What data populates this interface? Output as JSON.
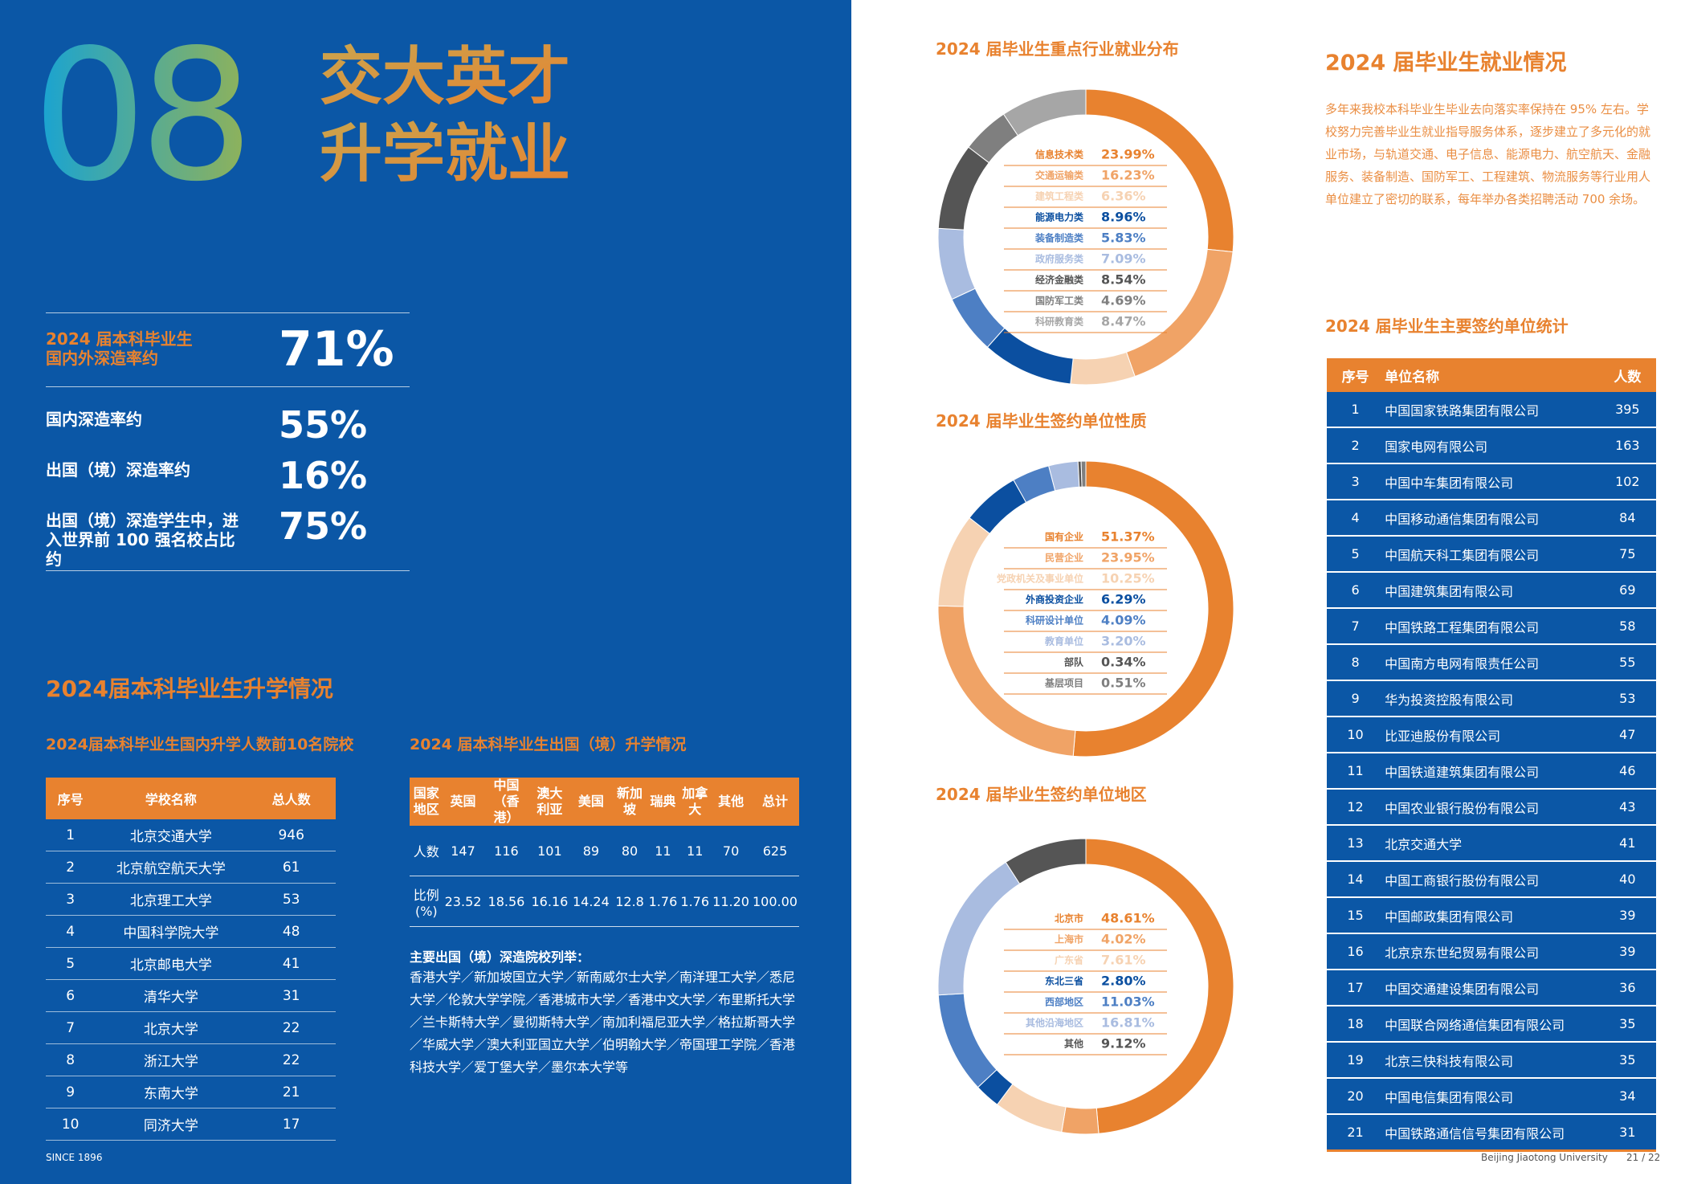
{
  "cover": {
    "number": "08",
    "title_lines": [
      "交大英才",
      "升学就业"
    ]
  },
  "stats": {
    "headline": {
      "label_lines": [
        "2024 届本科毕业生",
        "国内外深造率约"
      ],
      "value": "71%"
    },
    "rows": [
      {
        "label": "国内深造率约",
        "value": "55%"
      },
      {
        "label": "出国（境）深造率约",
        "value": "16%"
      },
      {
        "label": "出国（境）深造学生中，进入世界前 100 强名校占比约",
        "value": "75%"
      }
    ]
  },
  "further_study": {
    "title": "2024届本科毕业生升学情况",
    "domestic": {
      "title": "2024届本科毕业生国内升学人数前10名院校",
      "headers": [
        "序号",
        "学校名称",
        "总人数"
      ],
      "rows": [
        [
          1,
          "北京交通大学",
          946
        ],
        [
          2,
          "北京航空航天大学",
          61
        ],
        [
          3,
          "北京理工大学",
          53
        ],
        [
          4,
          "中国科学院大学",
          48
        ],
        [
          5,
          "北京邮电大学",
          41
        ],
        [
          6,
          "清华大学",
          31
        ],
        [
          7,
          "北京大学",
          22
        ],
        [
          8,
          "浙江大学",
          22
        ],
        [
          9,
          "东南大学",
          21
        ],
        [
          10,
          "同济大学",
          17
        ]
      ]
    },
    "abroad": {
      "title": "2024 届本科毕业生出国（境）升学情况",
      "headers": [
        "国家地区",
        "英国",
        "中国（香港）",
        "澳大利亚",
        "美国",
        "新加坡",
        "瑞典",
        "加拿大",
        "其他",
        "总计"
      ],
      "rows": [
        [
          "人数",
          "147",
          "116",
          "101",
          "89",
          "80",
          "11",
          "11",
          "70",
          "625"
        ],
        [
          "比例(%)",
          "23.52",
          "18.56",
          "16.16",
          "14.24",
          "12.8",
          "1.76",
          "1.76",
          "11.20",
          "100.00"
        ]
      ]
    },
    "schools_title": "主要出国（境）深造院校列举：",
    "schools": "香港大学／新加坡国立大学／新南威尔士大学／南洋理工大学／悉尼大学／伦敦大学学院／香港城市大学／香港中文大学／布里斯托大学／兰卡斯特大学／曼彻斯特大学／南加利福尼亚大学／格拉斯哥大学／华威大学／澳大利亚国立大学／伯明翰大学／帝国理工学院／香港科技大学／爱丁堡大学／墨尔本大学等"
  },
  "chart_data": [
    {
      "type": "donut",
      "title": "2024 届毕业生重点行业就业分布",
      "categories": [
        "信息技术类",
        "交通运输类",
        "建筑工程类",
        "能源电力类",
        "装备制造类",
        "政府服务类",
        "经济金融类",
        "国防军工类",
        "科研教育类"
      ],
      "values": [
        23.99,
        16.23,
        6.36,
        8.96,
        5.83,
        7.09,
        8.54,
        4.69,
        8.47
      ],
      "value_labels": [
        "23.99%",
        "16.23%",
        "6.36%",
        "8.96%",
        "5.83%",
        "7.09%",
        "8.54%",
        "4.69%",
        "8.47%"
      ],
      "colors": [
        "#e8822f",
        "#f0a366",
        "#f6d2b2",
        "#0b4fa0",
        "#4d7fc4",
        "#a9bce0",
        "#555555",
        "#7f7f7f",
        "#a6a6a6"
      ]
    },
    {
      "type": "donut",
      "title": "2024 届毕业生签约单位性质",
      "categories": [
        "国有企业",
        "民营企业",
        "党政机关及事业单位",
        "外商投资企业",
        "科研设计单位",
        "教育单位",
        "部队",
        "基层项目"
      ],
      "values": [
        51.37,
        23.95,
        10.25,
        6.29,
        4.09,
        3.2,
        0.34,
        0.51
      ],
      "value_labels": [
        "51.37%",
        "23.95%",
        "10.25%",
        "6.29%",
        "4.09%",
        "3.20%",
        "0.34%",
        "0.51%"
      ],
      "colors": [
        "#e8822f",
        "#f0a366",
        "#f6d2b2",
        "#0b4fa0",
        "#4d7fc4",
        "#a9bce0",
        "#555555",
        "#7f7f7f"
      ]
    },
    {
      "type": "donut",
      "title": "2024 届毕业生签约单位地区",
      "categories": [
        "北京市",
        "上海市",
        "广东省",
        "东北三省",
        "西部地区",
        "其他沿海地区",
        "其他"
      ],
      "values": [
        48.61,
        4.02,
        7.61,
        2.8,
        11.03,
        16.81,
        9.12
      ],
      "value_labels": [
        "48.61%",
        "4.02%",
        "7.61%",
        "2.80%",
        "11.03%",
        "16.81%",
        "9.12%"
      ],
      "colors": [
        "#e8822f",
        "#f0a366",
        "#f6d2b2",
        "#0b4fa0",
        "#4d7fc4",
        "#a9bce0",
        "#555555"
      ]
    }
  ],
  "employment": {
    "title": "2024 届毕业生就业情况",
    "paragraph": "多年来我校本科毕业生毕业去向落实率保持在 95% 左右。学校努力完善毕业生就业指导服务体系，逐步建立了多元化的就业市场，与轨道交通、电子信息、能源电力、航空航天、金融服务、装备制造、国防军工、工程建筑、物流服务等行业用人单位建立了密切的联系，每年举办各类招聘活动 700 余场。",
    "table": {
      "title": "2024 届毕业生主要签约单位统计",
      "headers": [
        "序号",
        "单位名称",
        "人数"
      ],
      "rows": [
        [
          1,
          "中国国家铁路集团有限公司",
          395
        ],
        [
          2,
          "国家电网有限公司",
          163
        ],
        [
          3,
          "中国中车集团有限公司",
          102
        ],
        [
          4,
          "中国移动通信集团有限公司",
          84
        ],
        [
          5,
          "中国航天科工集团有限公司",
          75
        ],
        [
          6,
          "中国建筑集团有限公司",
          69
        ],
        [
          7,
          "中国铁路工程集团有限公司",
          58
        ],
        [
          8,
          "中国南方电网有限责任公司",
          55
        ],
        [
          9,
          "华为投资控股有限公司",
          53
        ],
        [
          10,
          "比亚迪股份有限公司",
          47
        ],
        [
          11,
          "中国铁道建筑集团有限公司",
          46
        ],
        [
          12,
          "中国农业银行股份有限公司",
          43
        ],
        [
          13,
          "北京交通大学",
          41
        ],
        [
          14,
          "中国工商银行股份有限公司",
          40
        ],
        [
          15,
          "中国邮政集团有限公司",
          39
        ],
        [
          16,
          "北京京东世纪贸易有限公司",
          39
        ],
        [
          17,
          "中国交通建设集团有限公司",
          36
        ],
        [
          18,
          "中国联合网络通信集团有限公司",
          35
        ],
        [
          19,
          "北京三快科技有限公司",
          35
        ],
        [
          20,
          "中国电信集团有限公司",
          34
        ],
        [
          21,
          "中国铁路通信信号集团有限公司",
          31
        ]
      ]
    }
  },
  "footer": {
    "left": "SINCE 1896",
    "right": "Beijing Jiaotong University",
    "page": "21 / 22"
  }
}
